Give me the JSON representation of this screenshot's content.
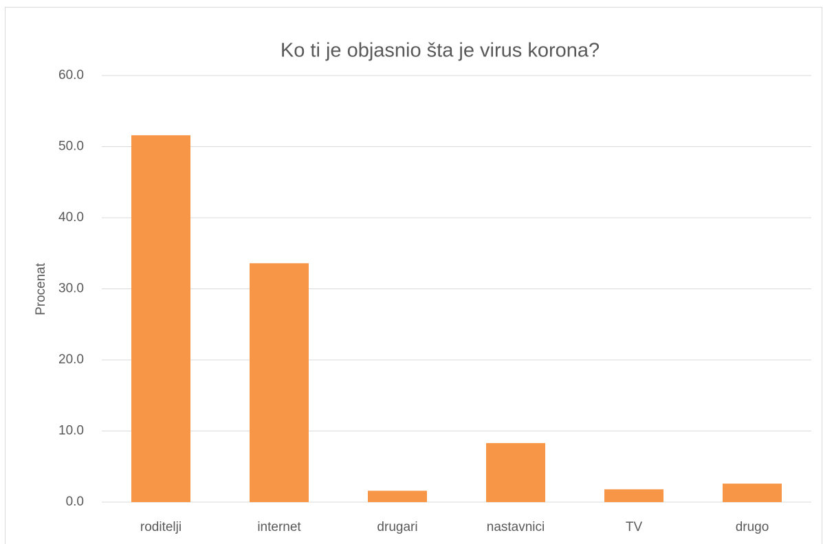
{
  "chart_data": {
    "type": "bar",
    "title": "Ko ti je objasnio šta je virus korona?",
    "y_label": "Procenat",
    "categories": [
      "roditelji",
      "internet",
      "drugari",
      "nastavnici",
      "TV",
      "drugo"
    ],
    "values": [
      51.6,
      33.6,
      1.6,
      8.3,
      1.8,
      2.6
    ],
    "color": "#f79646",
    "ylim": [
      0,
      60
    ],
    "yticks": [
      {
        "value": 0,
        "label": "0.0"
      },
      {
        "value": 10,
        "label": "10.0"
      },
      {
        "value": 20,
        "label": "20.0"
      },
      {
        "value": 30,
        "label": "30.0"
      },
      {
        "value": 40,
        "label": "40.0"
      },
      {
        "value": 50,
        "label": "50.0"
      },
      {
        "value": 60,
        "label": "60.0"
      }
    ],
    "grid": true
  }
}
